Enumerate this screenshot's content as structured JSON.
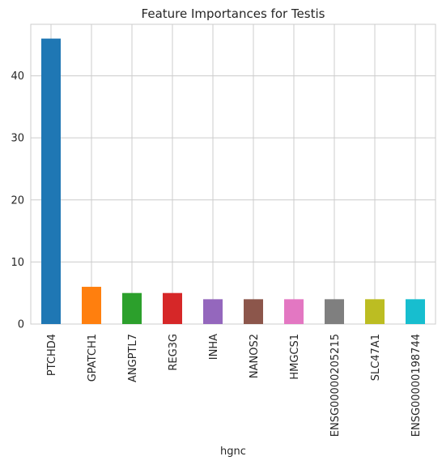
{
  "chart_data": {
    "type": "bar",
    "title": "Feature Importances for Testis",
    "xlabel": "hgnc",
    "ylabel": "",
    "categories": [
      "PTCHD4",
      "GPATCH1",
      "ANGPTL7",
      "REG3G",
      "INHA",
      "NANOS2",
      "HMGCS1",
      "ENSG00000205215",
      "SLC47A1",
      "ENSG00000198744"
    ],
    "values": [
      46,
      6,
      5,
      5,
      4,
      4,
      4,
      4,
      4,
      4
    ],
    "colors": [
      "#1f77b4",
      "#ff7f0e",
      "#2ca02c",
      "#d62728",
      "#9467bd",
      "#8c564b",
      "#e377c2",
      "#7f7f7f",
      "#bcbd22",
      "#17becf"
    ],
    "ylim": [
      0,
      48.3
    ],
    "yticks": [
      0,
      10,
      20,
      30,
      40
    ],
    "grid": true,
    "legend": "none"
  }
}
